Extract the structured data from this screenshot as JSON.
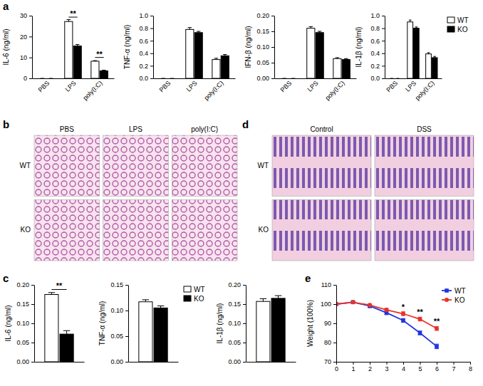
{
  "panel_labels": [
    "a",
    "b",
    "c",
    "d",
    "e"
  ],
  "images": [
    {
      "columns": [
        "PBS",
        "LPS",
        "poly(I:C)"
      ],
      "rows": [
        "WT",
        "KO"
      ]
    },
    {
      "columns": [
        "Control",
        "DSS"
      ],
      "rows": [
        "WT",
        "KO"
      ]
    }
  ],
  "chart_data": [
    {
      "type": "bar",
      "y_label": "IL-6 (ng/ml)",
      "categories": [
        "PBS",
        "LPS",
        "poly(I:C)"
      ],
      "series": [
        {
          "name": "WT",
          "color": "#ffffff",
          "values": [
            0,
            27.2,
            8.2
          ],
          "errors": [
            0,
            0.9,
            0.3
          ]
        },
        {
          "name": "KO",
          "color": "#000000",
          "values": [
            0,
            15.5,
            3.6
          ],
          "errors": [
            0,
            0.7,
            0.3
          ]
        }
      ],
      "ylim": [
        0,
        30
      ],
      "yticks": [
        0,
        10,
        20,
        30
      ],
      "annotations": [
        {
          "category": 1,
          "y": 29.3,
          "text": "**"
        },
        {
          "category": 2,
          "y": 10,
          "text": "**"
        }
      ]
    },
    {
      "type": "bar",
      "y_label": "TNF-α (ng/ml)",
      "categories": [
        "PBS",
        "LPS",
        "poly(I:C)"
      ],
      "series": [
        {
          "name": "WT",
          "color": "#ffffff",
          "values": [
            0,
            0.78,
            0.3
          ],
          "errors": [
            0,
            0.03,
            0.02
          ]
        },
        {
          "name": "KO",
          "color": "#000000",
          "values": [
            0,
            0.73,
            0.36
          ],
          "errors": [
            0,
            0.02,
            0.02
          ]
        }
      ],
      "ylim": [
        0,
        1
      ],
      "yticks": [
        {
          "value": 0,
          "label": "0.0"
        },
        0.2,
        0.4,
        0.6,
        0.8,
        {
          "value": 1,
          "label": "1.0"
        }
      ]
    },
    {
      "type": "bar",
      "y_label": "IFN-β (ng/ml)",
      "categories": [
        "PBS",
        "LPS",
        "poly(I:C)"
      ],
      "series": [
        {
          "name": "WT",
          "color": "#ffffff",
          "values": [
            0,
            0.16,
            0.063
          ],
          "errors": [
            0,
            0.005,
            0.003
          ]
        },
        {
          "name": "KO",
          "color": "#000000",
          "values": [
            0,
            0.146,
            0.06
          ],
          "errors": [
            0,
            0.004,
            0.003
          ]
        }
      ],
      "ylim": [
        0,
        0.2
      ],
      "yticks": [
        {
          "value": 0,
          "label": "0.00"
        },
        0.05,
        {
          "value": 0.1,
          "label": "0.10"
        },
        0.15,
        {
          "value": 0.2,
          "label": "0.20"
        }
      ]
    },
    {
      "type": "bar",
      "y_label": "IL-1β (ng/ml)",
      "categories": [
        "PBS",
        "LPS",
        "poly(I:C)"
      ],
      "series": [
        {
          "name": "WT",
          "color": "#ffffff",
          "values": [
            0,
            0.9,
            0.39
          ],
          "errors": [
            0,
            0.03,
            0.02
          ]
        },
        {
          "name": "KO",
          "color": "#000000",
          "values": [
            0,
            0.8,
            0.33
          ],
          "errors": [
            0,
            0.02,
            0.02
          ]
        }
      ],
      "ylim": [
        0,
        1
      ],
      "yticks": [
        {
          "value": 0,
          "label": "0.0"
        },
        0.2,
        0.4,
        0.6,
        0.8,
        {
          "value": 1,
          "label": "1.0"
        }
      ],
      "legend": "upper right"
    },
    {
      "type": "bar",
      "y_label": "IL-6 (ng/ml)",
      "categories": [
        null
      ],
      "series": [
        {
          "name": "WT",
          "color": "#ffffff",
          "values": [
            0.175
          ],
          "errors": [
            0.005
          ]
        },
        {
          "name": "KO",
          "color": "#000000",
          "values": [
            0.072
          ],
          "errors": [
            0.009
          ]
        }
      ],
      "ylim": [
        0,
        0.2
      ],
      "yticks": [
        {
          "value": 0,
          "label": "0.00"
        },
        0.05,
        {
          "value": 0.1,
          "label": "0.10"
        },
        0.15,
        {
          "value": 0.2,
          "label": "0.20"
        }
      ],
      "annotations": [
        {
          "category": 0,
          "y": 0.188,
          "text": "**"
        }
      ]
    },
    {
      "type": "bar",
      "y_label": "TNF-α (ng/ml)",
      "categories": [
        null
      ],
      "series": [
        {
          "name": "WT",
          "color": "#ffffff",
          "values": [
            0.117
          ],
          "errors": [
            0.004
          ]
        },
        {
          "name": "KO",
          "color": "#000000",
          "values": [
            0.105
          ],
          "errors": [
            0.004
          ]
        }
      ],
      "ylim": [
        0,
        0.15
      ],
      "yticks": [
        {
          "value": 0,
          "label": "0.00"
        },
        0.05,
        {
          "value": 0.1,
          "label": "0.10"
        },
        0.15
      ],
      "legend": "upper right"
    },
    {
      "type": "bar",
      "y_label": "IL-1β (ng/ml)",
      "categories": [
        null
      ],
      "series": [
        {
          "name": "WT",
          "color": "#ffffff",
          "values": [
            0.157
          ],
          "errors": [
            0.007
          ]
        },
        {
          "name": "KO",
          "color": "#000000",
          "values": [
            0.165
          ],
          "errors": [
            0.007
          ]
        }
      ],
      "ylim": [
        0,
        0.2
      ],
      "yticks": [
        {
          "value": 0,
          "label": "0.00"
        },
        0.05,
        {
          "value": 0.1,
          "label": "0.10"
        },
        0.15,
        {
          "value": 0.2,
          "label": "0.20"
        }
      ]
    },
    {
      "type": "line",
      "y_label": "Weight (100%)",
      "x": [
        0,
        1,
        2,
        3,
        4,
        5,
        6
      ],
      "series": [
        {
          "name": "WT",
          "color": "#1f35e0",
          "marker": "square",
          "values": [
            100,
            101,
            99,
            95.5,
            91.5,
            85,
            78
          ],
          "errors": [
            0.3,
            0.4,
            0.8,
            1,
            1,
            1,
            1.2
          ]
        },
        {
          "name": "KO",
          "color": "#e8322a",
          "marker": "circle",
          "values": [
            100,
            101,
            99.5,
            97,
            95,
            92.2,
            87.3
          ],
          "errors": [
            0.3,
            0.4,
            0.6,
            0.8,
            1,
            1,
            1
          ]
        }
      ],
      "xlim": [
        0,
        8
      ],
      "xticks": [
        0,
        1,
        2,
        3,
        4,
        5,
        6,
        7,
        8
      ],
      "ylim": [
        70,
        110
      ],
      "yticks": [
        70,
        80,
        90,
        100,
        110
      ],
      "annotations": [
        {
          "x": 4,
          "y": 97.2,
          "text": "*"
        },
        {
          "x": 5,
          "y": 94.6,
          "text": "**"
        },
        {
          "x": 6,
          "y": 89.6,
          "text": "**"
        }
      ],
      "legend": "upper right"
    }
  ]
}
